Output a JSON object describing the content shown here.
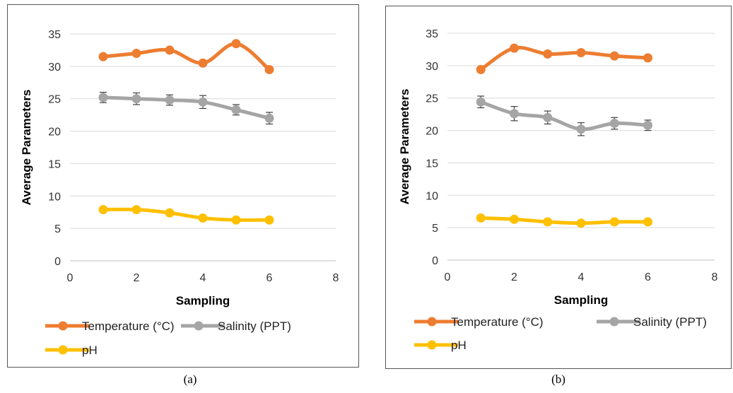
{
  "chart_data": [
    {
      "type": "line",
      "xlabel": "Sampling",
      "ylabel": "Average Parameters",
      "xlim": [
        0,
        8
      ],
      "ylim": [
        0,
        35
      ],
      "xticks": [
        0,
        2,
        4,
        6,
        8
      ],
      "yticks": [
        0,
        5,
        10,
        15,
        20,
        25,
        30,
        35
      ],
      "grid": "horizontal",
      "legend": "bottom",
      "caption": "(a)",
      "series": [
        {
          "name": "Temperature (°C)",
          "color": "#ED7D31",
          "x": [
            1,
            2,
            3,
            4,
            5,
            6
          ],
          "y": [
            31.5,
            32.0,
            32.5,
            30.5,
            33.5,
            29.5
          ]
        },
        {
          "name": "Salinity (PPT)",
          "color": "#A5A5A5",
          "x": [
            1,
            2,
            3,
            4,
            5,
            6
          ],
          "y": [
            25.2,
            25.0,
            24.8,
            24.5,
            23.3,
            22.0
          ],
          "error": [
            0.8,
            0.9,
            0.8,
            1.0,
            0.8,
            0.9
          ]
        },
        {
          "name": "pH",
          "color": "#FFC000",
          "x": [
            1,
            2,
            3,
            4,
            5,
            6
          ],
          "y": [
            7.9,
            7.9,
            7.4,
            6.6,
            6.3,
            6.3
          ]
        }
      ]
    },
    {
      "type": "line",
      "xlabel": "Sampling",
      "ylabel": "Average Parameters",
      "xlim": [
        0,
        8
      ],
      "ylim": [
        0,
        35
      ],
      "xticks": [
        0,
        2,
        4,
        6,
        8
      ],
      "yticks": [
        0,
        5,
        10,
        15,
        20,
        25,
        30,
        35
      ],
      "grid": "horizontal",
      "legend": "bottom",
      "caption": "(b)",
      "series": [
        {
          "name": "Temperature (°C)",
          "color": "#ED7D31",
          "x": [
            1,
            2,
            3,
            4,
            5,
            6
          ],
          "y": [
            29.4,
            32.7,
            31.8,
            32.0,
            31.5,
            31.2
          ]
        },
        {
          "name": "Salinity (PPT)",
          "color": "#A5A5A5",
          "x": [
            1,
            2,
            3,
            4,
            5,
            6
          ],
          "y": [
            24.4,
            22.6,
            22.0,
            20.2,
            21.1,
            20.8
          ],
          "error": [
            0.9,
            1.1,
            1.0,
            1.0,
            0.9,
            0.8
          ]
        },
        {
          "name": "pH",
          "color": "#FFC000",
          "x": [
            1,
            2,
            3,
            4,
            5,
            6
          ],
          "y": [
            6.5,
            6.3,
            5.9,
            5.7,
            5.9,
            5.9
          ]
        }
      ]
    }
  ]
}
